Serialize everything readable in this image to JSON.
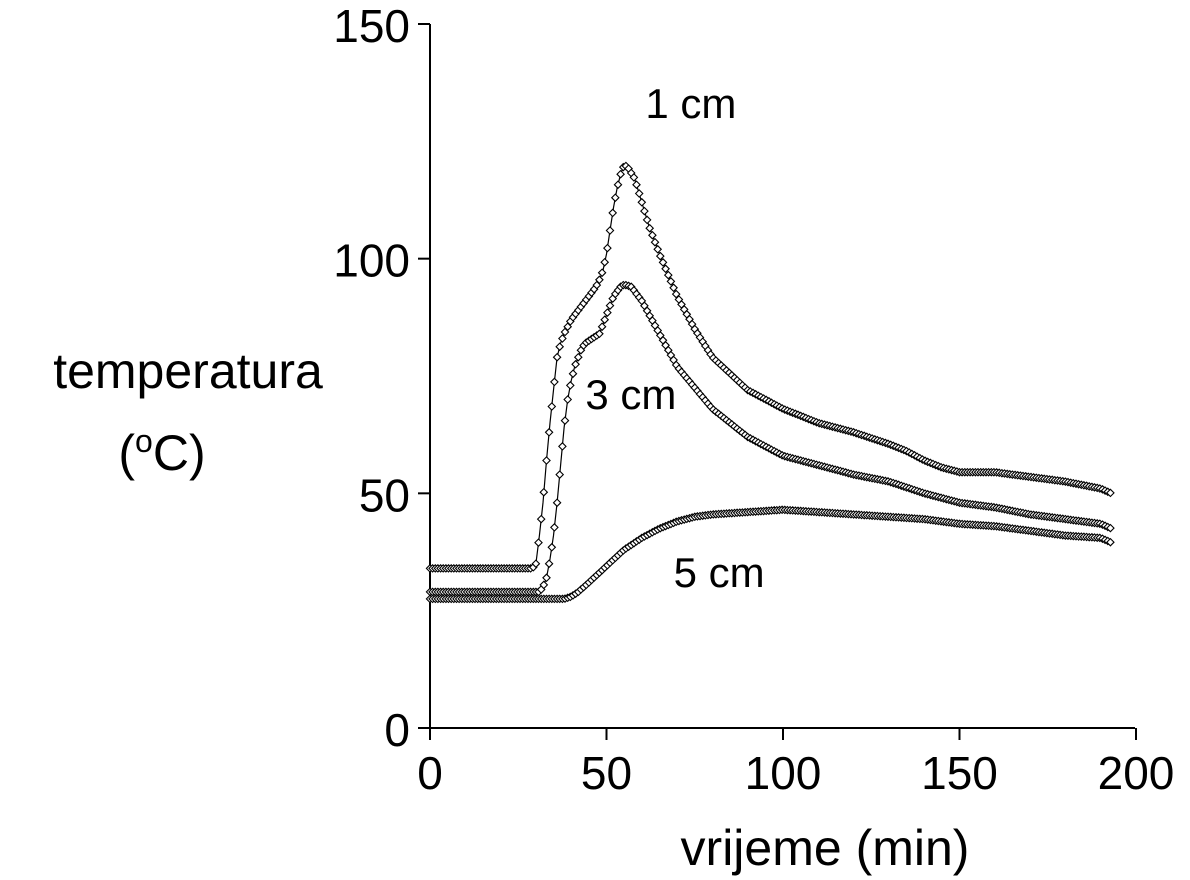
{
  "chart_data": {
    "type": "scatter",
    "title": "",
    "xlabel": "vrijeme (min)",
    "ylabel_line1": "temperatura",
    "ylabel_line2_open": "(",
    "ylabel_line2_sup": "o",
    "ylabel_line2_close": "C)",
    "xlim": [
      0,
      200
    ],
    "ylim": [
      0,
      150
    ],
    "xticks": [
      0,
      50,
      100,
      150,
      200
    ],
    "xtick_labels": [
      "0",
      "50",
      "100",
      "150",
      "200"
    ],
    "yticks": [
      0,
      50,
      100,
      150
    ],
    "ytick_labels": [
      "0",
      "50",
      "100",
      "150"
    ],
    "grid": false,
    "legend": "none",
    "marker": "diamond",
    "series": [
      {
        "name": "1 cm",
        "points": [
          [
            0,
            34
          ],
          [
            29,
            34
          ],
          [
            30,
            35
          ],
          [
            31,
            41
          ],
          [
            32,
            48
          ],
          [
            33,
            57
          ],
          [
            34,
            65
          ],
          [
            35,
            72
          ],
          [
            36,
            79
          ],
          [
            37,
            82
          ],
          [
            38,
            84
          ],
          [
            39,
            85.5
          ],
          [
            40,
            87
          ],
          [
            41,
            88
          ],
          [
            42,
            89
          ],
          [
            43,
            90
          ],
          [
            44,
            91
          ],
          [
            45,
            92
          ],
          [
            46,
            93
          ],
          [
            47,
            94
          ],
          [
            48,
            95.5
          ],
          [
            49,
            97.5
          ],
          [
            50,
            101
          ],
          [
            51,
            106
          ],
          [
            52,
            111
          ],
          [
            53,
            115
          ],
          [
            54,
            118
          ],
          [
            55,
            120
          ],
          [
            56,
            119.5
          ],
          [
            58,
            117
          ],
          [
            60,
            112
          ],
          [
            62,
            107
          ],
          [
            65,
            101
          ],
          [
            70,
            92
          ],
          [
            75,
            85
          ],
          [
            80,
            79
          ],
          [
            90,
            72
          ],
          [
            100,
            68
          ],
          [
            110,
            65
          ],
          [
            120,
            63
          ],
          [
            130,
            60.5
          ],
          [
            135,
            59
          ],
          [
            140,
            57
          ],
          [
            145,
            55.5
          ],
          [
            150,
            54.5
          ],
          [
            160,
            54.5
          ],
          [
            170,
            53.5
          ],
          [
            180,
            52.5
          ],
          [
            190,
            51
          ],
          [
            193,
            50
          ]
        ]
      },
      {
        "name": "3 cm",
        "points": [
          [
            0,
            29
          ],
          [
            31,
            29
          ],
          [
            32,
            30
          ],
          [
            33,
            32
          ],
          [
            34,
            36
          ],
          [
            35,
            41
          ],
          [
            36,
            48
          ],
          [
            37,
            56
          ],
          [
            38,
            64
          ],
          [
            39,
            70
          ],
          [
            40,
            74
          ],
          [
            41,
            77
          ],
          [
            42,
            79
          ],
          [
            43,
            81
          ],
          [
            44,
            82
          ],
          [
            46,
            83
          ],
          [
            48,
            84
          ],
          [
            50,
            88
          ],
          [
            52,
            92
          ],
          [
            54,
            94
          ],
          [
            55,
            94.5
          ],
          [
            57,
            94
          ],
          [
            60,
            91
          ],
          [
            65,
            84
          ],
          [
            70,
            77
          ],
          [
            80,
            68
          ],
          [
            90,
            62
          ],
          [
            100,
            58
          ],
          [
            110,
            56
          ],
          [
            120,
            54
          ],
          [
            130,
            52.5
          ],
          [
            140,
            50
          ],
          [
            150,
            48
          ],
          [
            160,
            47
          ],
          [
            170,
            45.5
          ],
          [
            180,
            44.5
          ],
          [
            190,
            43.5
          ],
          [
            193,
            42.5
          ]
        ]
      },
      {
        "name": "5 cm",
        "points": [
          [
            0,
            27.5
          ],
          [
            35,
            27.5
          ],
          [
            38,
            27.5
          ],
          [
            40,
            28
          ],
          [
            42,
            29
          ],
          [
            45,
            31
          ],
          [
            50,
            34.5
          ],
          [
            55,
            38
          ],
          [
            60,
            40.5
          ],
          [
            65,
            42.5
          ],
          [
            70,
            44
          ],
          [
            75,
            45
          ],
          [
            80,
            45.5
          ],
          [
            90,
            46
          ],
          [
            100,
            46.5
          ],
          [
            110,
            46
          ],
          [
            120,
            45.5
          ],
          [
            130,
            45
          ],
          [
            140,
            44.5
          ],
          [
            150,
            43.5
          ],
          [
            160,
            43
          ],
          [
            170,
            42
          ],
          [
            180,
            41
          ],
          [
            190,
            40.5
          ],
          [
            193,
            39.5
          ]
        ]
      }
    ],
    "annotations": [
      {
        "text": "1 cm",
        "x": 61,
        "y": 130
      },
      {
        "text": "3 cm",
        "x": 44,
        "y": 68
      },
      {
        "text": "5 cm",
        "x": 69,
        "y": 30
      }
    ]
  }
}
